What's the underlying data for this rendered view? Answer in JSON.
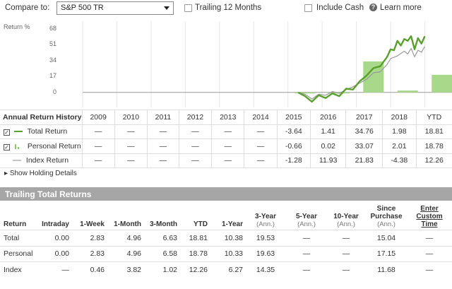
{
  "toolbar": {
    "compare_label": "Compare to:",
    "compare_value": "S&P 500 TR",
    "trailing_label": "Trailing 12 Months",
    "cash_label": "Include Cash",
    "learn_label": "Learn more",
    "learn_icon": "question-icon"
  },
  "chart_data": {
    "type": "line",
    "ylabel": "Return %",
    "y_ticks": [
      "68",
      "51",
      "34",
      "17",
      "0"
    ],
    "ylim": [
      -16,
      76
    ],
    "x": [
      "2009",
      "2010",
      "2011",
      "2012",
      "2013",
      "2014",
      "2015",
      "2016",
      "2017",
      "2018",
      "YTD"
    ],
    "bars": {
      "name": "Personal Return",
      "color": "#a8d98a",
      "values": [
        null,
        null,
        null,
        null,
        null,
        null,
        -0.66,
        0.02,
        33.07,
        2.01,
        18.78
      ]
    },
    "series": [
      {
        "name": "Total Return",
        "color": "#5aa02c",
        "points": [
          [
            6.3,
            0
          ],
          [
            6.5,
            -4
          ],
          [
            6.7,
            -10
          ],
          [
            6.9,
            -3
          ],
          [
            7.1,
            -6
          ],
          [
            7.3,
            -1
          ],
          [
            7.5,
            -4
          ],
          [
            7.7,
            4
          ],
          [
            7.9,
            3
          ],
          [
            8.1,
            12
          ],
          [
            8.3,
            18
          ],
          [
            8.5,
            26
          ],
          [
            8.7,
            28
          ],
          [
            8.9,
            38
          ],
          [
            9.0,
            46
          ],
          [
            9.1,
            45
          ],
          [
            9.2,
            55
          ],
          [
            9.3,
            50
          ],
          [
            9.4,
            57
          ],
          [
            9.5,
            55
          ],
          [
            9.6,
            60
          ],
          [
            9.7,
            46
          ],
          [
            9.8,
            58
          ],
          [
            9.9,
            52
          ],
          [
            10.0,
            60
          ]
        ]
      },
      {
        "name": "Index Return",
        "color": "#999999",
        "points": [
          [
            6.3,
            0
          ],
          [
            6.5,
            -2
          ],
          [
            6.7,
            -7
          ],
          [
            6.9,
            -2
          ],
          [
            7.1,
            -3
          ],
          [
            7.3,
            1
          ],
          [
            7.5,
            -1
          ],
          [
            7.7,
            3
          ],
          [
            7.9,
            6
          ],
          [
            8.1,
            10
          ],
          [
            8.3,
            14
          ],
          [
            8.5,
            21
          ],
          [
            8.7,
            22
          ],
          [
            8.9,
            30
          ],
          [
            9.0,
            36
          ],
          [
            9.2,
            39
          ],
          [
            9.4,
            44
          ],
          [
            9.5,
            41
          ],
          [
            9.6,
            47
          ],
          [
            9.7,
            38
          ],
          [
            9.8,
            45
          ],
          [
            9.9,
            43
          ],
          [
            10.0,
            49
          ]
        ]
      }
    ]
  },
  "arh": {
    "header": "Annual Return History",
    "years": [
      "2009",
      "2010",
      "2011",
      "2012",
      "2013",
      "2014",
      "2015",
      "2016",
      "2017",
      "2018",
      "YTD"
    ],
    "rows": [
      {
        "label": "Total Return",
        "checked": "✓",
        "values": [
          "—",
          "—",
          "—",
          "—",
          "—",
          "—",
          "-3.64",
          "1.41",
          "34.76",
          "1.98",
          "18.81"
        ]
      },
      {
        "label": "Personal Return",
        "checked": "✓",
        "values": [
          "—",
          "—",
          "—",
          "—",
          "—",
          "—",
          "-0.66",
          "0.02",
          "33.07",
          "2.01",
          "18.78"
        ]
      },
      {
        "label": "Index Return",
        "checked": "",
        "values": [
          "—",
          "—",
          "—",
          "—",
          "—",
          "—",
          "-1.28",
          "11.93",
          "21.83",
          "-4.38",
          "12.26"
        ]
      }
    ]
  },
  "show_holding": "Show Holding Details",
  "ttr": {
    "title": "Trailing Total Returns",
    "headers": [
      {
        "main": "Return",
        "sub": ""
      },
      {
        "main": "Intraday",
        "sub": ""
      },
      {
        "main": "1-Week",
        "sub": ""
      },
      {
        "main": "1-Month",
        "sub": ""
      },
      {
        "main": "3-Month",
        "sub": ""
      },
      {
        "main": "YTD",
        "sub": ""
      },
      {
        "main": "1-Year",
        "sub": ""
      },
      {
        "main": "3-Year",
        "sub": "(Ann.)"
      },
      {
        "main": "5-Year",
        "sub": "(Ann.)"
      },
      {
        "main": "10-Year",
        "sub": "(Ann.)"
      },
      {
        "main": "Since Purchase",
        "sub": "(Ann.)"
      },
      {
        "main": "Enter Custom Time",
        "sub": ""
      }
    ],
    "rows": [
      {
        "label": "Total",
        "values": [
          "0.00",
          "2.83",
          "4.96",
          "6.63",
          "18.81",
          "10.38",
          "19.53",
          "—",
          "—",
          "15.04",
          "—"
        ]
      },
      {
        "label": "Personal",
        "values": [
          "0.00",
          "2.83",
          "4.96",
          "6.58",
          "18.78",
          "10.33",
          "19.63",
          "—",
          "—",
          "17.15",
          "—"
        ]
      },
      {
        "label": "Index",
        "values": [
          "—",
          "0.46",
          "3.82",
          "1.02",
          "12.26",
          "6.27",
          "14.35",
          "—",
          "—",
          "11.68",
          "—"
        ]
      }
    ]
  }
}
